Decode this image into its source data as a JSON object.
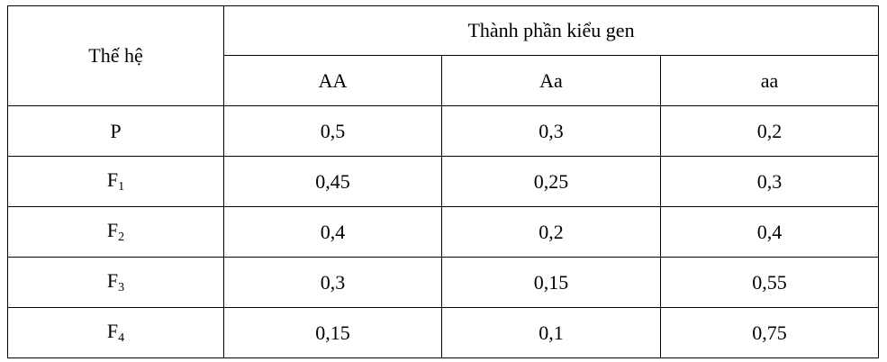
{
  "header": {
    "generation": "Thế hệ",
    "group": "Thành phần kiểu gen",
    "genotypes": [
      "AA",
      "Aa",
      "aa"
    ]
  },
  "rows": [
    {
      "generation": {
        "base": "P"
      },
      "values": [
        "0,5",
        "0,3",
        "0,2"
      ]
    },
    {
      "generation": {
        "base": "F",
        "sub": "1"
      },
      "values": [
        "0,45",
        "0,25",
        "0,3"
      ]
    },
    {
      "generation": {
        "base": "F",
        "sub": "2"
      },
      "values": [
        "0,4",
        "0,2",
        "0,4"
      ]
    },
    {
      "generation": {
        "base": "F",
        "sub": "3"
      },
      "values": [
        "0,3",
        "0,15",
        "0,55"
      ]
    },
    {
      "generation": {
        "base": "F",
        "sub": "4"
      },
      "values": [
        "0,15",
        "0,1",
        "0,75"
      ]
    }
  ]
}
